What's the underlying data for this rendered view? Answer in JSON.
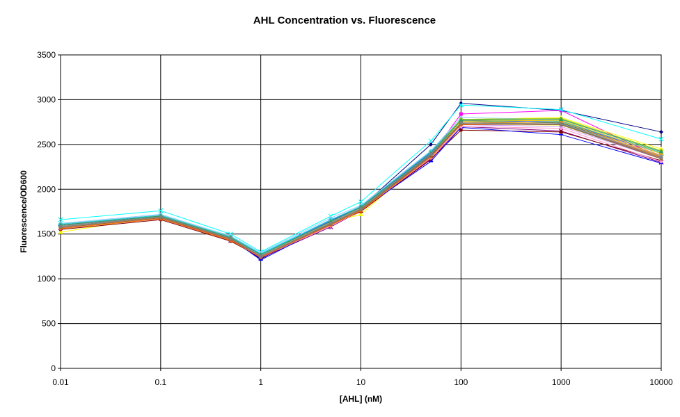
{
  "chart_data": {
    "type": "line",
    "title": "AHL Concentration vs. Fluorescence",
    "xlabel": "[AHL] (nM)",
    "ylabel": "Fluorescence/OD600",
    "x_scale": "log",
    "x_ticks": [
      "0.01",
      "0.1",
      "1",
      "10",
      "100",
      "1000",
      "10000"
    ],
    "y_ticks": [
      "0",
      "500",
      "1000",
      "1500",
      "2000",
      "2500",
      "3000",
      "3500"
    ],
    "ylim": [
      0,
      3500
    ],
    "xlim": [
      0.01,
      10000
    ],
    "grid": true,
    "x": [
      0.01,
      0.1,
      0.5,
      1,
      5,
      10,
      50,
      100,
      1000,
      10000
    ],
    "series": [
      {
        "color": "#000080",
        "marker": "diamond",
        "values": [
          1600,
          1700,
          1450,
          1220,
          1650,
          1800,
          2500,
          2960,
          2880,
          2640
        ]
      },
      {
        "color": "#ff00ff",
        "marker": "square",
        "values": [
          1580,
          1690,
          1440,
          1250,
          1620,
          1780,
          2380,
          2840,
          2880,
          2350
        ]
      },
      {
        "color": "#ffff00",
        "marker": "triangle",
        "values": [
          1520,
          1700,
          1460,
          1260,
          1630,
          1720,
          2400,
          2780,
          2800,
          2450
        ]
      },
      {
        "color": "#00ffff",
        "marker": "x",
        "values": [
          1660,
          1760,
          1500,
          1300,
          1700,
          1860,
          2540,
          2940,
          2890,
          2560
        ]
      },
      {
        "color": "#800080",
        "marker": "star",
        "values": [
          1570,
          1680,
          1430,
          1230,
          1580,
          1760,
          2330,
          2700,
          2650,
          2300
        ]
      },
      {
        "color": "#800000",
        "marker": "circle",
        "values": [
          1550,
          1660,
          1420,
          1240,
          1600,
          1750,
          2340,
          2660,
          2640,
          2320
        ]
      },
      {
        "color": "#008080",
        "marker": "plus",
        "values": [
          1600,
          1700,
          1460,
          1270,
          1640,
          1790,
          2400,
          2760,
          2740,
          2380
        ]
      },
      {
        "color": "#0000ff",
        "marker": "dash",
        "values": [
          1590,
          1690,
          1450,
          1210,
          1610,
          1770,
          2310,
          2690,
          2610,
          2290
        ]
      },
      {
        "color": "#00ccff",
        "marker": "dash",
        "values": [
          1610,
          1710,
          1470,
          1280,
          1660,
          1800,
          2420,
          2780,
          2760,
          2400
        ]
      },
      {
        "color": "#ccffcc",
        "marker": "dash",
        "values": [
          1580,
          1690,
          1450,
          1260,
          1620,
          1780,
          2390,
          2740,
          2720,
          2370
        ]
      },
      {
        "color": "#ffff99",
        "marker": "dash",
        "values": [
          1570,
          1680,
          1440,
          1250,
          1610,
          1770,
          2380,
          2730,
          2710,
          2360
        ]
      },
      {
        "color": "#99ccff",
        "marker": "circle",
        "values": [
          1620,
          1720,
          1480,
          1290,
          1680,
          1820,
          2430,
          2800,
          2780,
          2420
        ]
      },
      {
        "color": "#ff99cc",
        "marker": "circle",
        "values": [
          1560,
          1670,
          1430,
          1240,
          1590,
          1760,
          2350,
          2700,
          2680,
          2310
        ]
      },
      {
        "color": "#cc99ff",
        "marker": "circle",
        "values": [
          1580,
          1690,
          1450,
          1250,
          1620,
          1780,
          2370,
          2720,
          2700,
          2340
        ]
      },
      {
        "color": "#ffcc99",
        "marker": "circle",
        "values": [
          1590,
          1700,
          1460,
          1260,
          1640,
          1790,
          2390,
          2750,
          2730,
          2380
        ]
      },
      {
        "color": "#3366ff",
        "marker": "circle",
        "values": [
          1600,
          1700,
          1460,
          1270,
          1650,
          1800,
          2410,
          2770,
          2750,
          2400
        ]
      },
      {
        "color": "#33cccc",
        "marker": "circle",
        "values": [
          1610,
          1710,
          1470,
          1270,
          1660,
          1810,
          2420,
          2780,
          2760,
          2410
        ]
      },
      {
        "color": "#99cc00",
        "marker": "circle",
        "values": [
          1590,
          1700,
          1460,
          1260,
          1640,
          1790,
          2400,
          2780,
          2790,
          2430
        ]
      },
      {
        "color": "#ffcc00",
        "marker": "circle",
        "values": [
          1580,
          1690,
          1450,
          1250,
          1620,
          1780,
          2380,
          2760,
          2770,
          2400
        ]
      },
      {
        "color": "#ff9900",
        "marker": "circle",
        "values": [
          1570,
          1680,
          1440,
          1250,
          1610,
          1770,
          2370,
          2740,
          2750,
          2380
        ]
      },
      {
        "color": "#ff6600",
        "marker": "circle",
        "values": [
          1560,
          1670,
          1430,
          1240,
          1600,
          1760,
          2360,
          2720,
          2730,
          2360
        ]
      },
      {
        "color": "#666699",
        "marker": "circle",
        "values": [
          1580,
          1690,
          1450,
          1250,
          1620,
          1780,
          2380,
          2730,
          2720,
          2350
        ]
      },
      {
        "color": "#969696",
        "marker": "circle",
        "values": [
          1590,
          1700,
          1460,
          1260,
          1630,
          1790,
          2390,
          2740,
          2730,
          2370
        ]
      },
      {
        "color": "#339966",
        "marker": "triangle",
        "values": [
          1600,
          1700,
          1460,
          1270,
          1640,
          1800,
          2400,
          2770,
          2780,
          2420
        ]
      },
      {
        "color": "#996633",
        "marker": "circle",
        "values": [
          1570,
          1680,
          1440,
          1250,
          1610,
          1770,
          2370,
          2730,
          2720,
          2340
        ]
      },
      {
        "color": "#808080",
        "marker": "circle",
        "values": [
          1580,
          1690,
          1450,
          1250,
          1620,
          1780,
          2390,
          2740,
          2730,
          2350
        ]
      }
    ]
  }
}
